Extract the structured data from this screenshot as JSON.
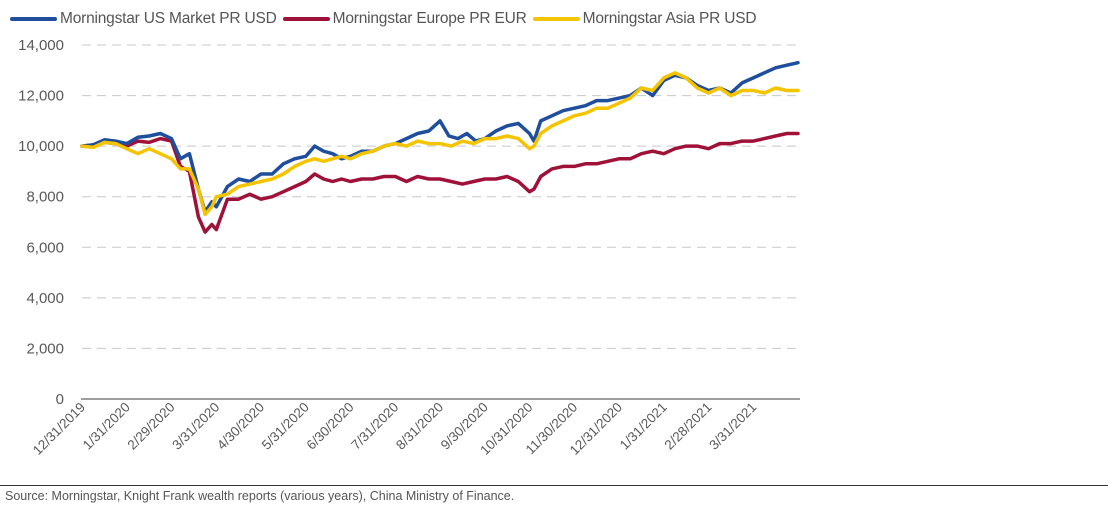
{
  "chart_data": {
    "type": "line",
    "title": "",
    "xlabel": "",
    "ylabel": "",
    "ylim": [
      0,
      14000
    ],
    "yticks": [
      0,
      2000,
      4000,
      6000,
      8000,
      10000,
      12000,
      14000
    ],
    "ytick_labels": [
      "0",
      "2,000",
      "4,000",
      "6,000",
      "8,000",
      "10,000",
      "12,000",
      "14,000"
    ],
    "xtick_labels": [
      "12/31/2019",
      "1/31/2020",
      "2/29/2020",
      "3/31/2020",
      "4/30/2020",
      "5/31/2020",
      "6/30/2020",
      "7/31/2020",
      "8/31/2020",
      "9/30/2020",
      "10/31/2020",
      "11/30/2020",
      "12/31/2020",
      "1/31/2021",
      "2/28/2021",
      "3/31/2021"
    ],
    "x_unit": "months since 12/31/2019",
    "x_range": [
      0,
      16
    ],
    "grid": "horizontal dashed",
    "legend": "top-left",
    "series": [
      {
        "name": "Morningstar US Market PR USD",
        "color": "#1f4e9c",
        "x": [
          0,
          0.25,
          0.5,
          0.75,
          1,
          1.25,
          1.5,
          1.75,
          2,
          2.2,
          2.4,
          2.6,
          2.75,
          2.9,
          3,
          3.25,
          3.5,
          3.75,
          4,
          4.25,
          4.5,
          4.75,
          5,
          5.2,
          5.4,
          5.6,
          5.8,
          6,
          6.25,
          6.5,
          6.75,
          7,
          7.25,
          7.5,
          7.75,
          8,
          8.2,
          8.4,
          8.6,
          8.8,
          9,
          9.25,
          9.5,
          9.75,
          10,
          10.1,
          10.25,
          10.5,
          10.75,
          11,
          11.25,
          11.5,
          11.75,
          12,
          12.25,
          12.5,
          12.75,
          13,
          13.25,
          13.5,
          13.75,
          14,
          14.25,
          14.5,
          14.75,
          15,
          15.25,
          15.5,
          15.75,
          16
        ],
        "values": [
          10000,
          10050,
          10250,
          10200,
          10100,
          10350,
          10400,
          10500,
          10300,
          9500,
          9700,
          8300,
          7400,
          7800,
          7600,
          8400,
          8700,
          8600,
          8900,
          8900,
          9300,
          9500,
          9600,
          10000,
          9800,
          9700,
          9500,
          9600,
          9800,
          9800,
          10000,
          10100,
          10300,
          10500,
          10600,
          11000,
          10400,
          10300,
          10500,
          10200,
          10300,
          10600,
          10800,
          10900,
          10500,
          10200,
          11000,
          11200,
          11400,
          11500,
          11600,
          11800,
          11800,
          11900,
          12000,
          12300,
          12000,
          12600,
          12800,
          12700,
          12400,
          12200,
          12300,
          12100,
          12500,
          12700,
          12900,
          13100,
          13200,
          13300
        ]
      },
      {
        "name": "Morningstar Europe PR EUR",
        "color": "#a0113a",
        "x": [
          0,
          0.25,
          0.5,
          0.75,
          1,
          1.25,
          1.5,
          1.75,
          2,
          2.2,
          2.4,
          2.6,
          2.75,
          2.9,
          3,
          3.25,
          3.5,
          3.75,
          4,
          4.25,
          4.5,
          4.75,
          5,
          5.2,
          5.4,
          5.6,
          5.8,
          6,
          6.25,
          6.5,
          6.75,
          7,
          7.25,
          7.5,
          7.75,
          8,
          8.25,
          8.5,
          8.75,
          9,
          9.25,
          9.5,
          9.75,
          10,
          10.1,
          10.25,
          10.5,
          10.75,
          11,
          11.25,
          11.5,
          11.75,
          12,
          12.25,
          12.5,
          12.75,
          13,
          13.25,
          13.5,
          13.75,
          14,
          14.25,
          14.5,
          14.75,
          15,
          15.25,
          15.5,
          15.75,
          16
        ],
        "values": [
          10000,
          10050,
          10150,
          10100,
          10000,
          10200,
          10150,
          10300,
          10200,
          9200,
          9000,
          7200,
          6600,
          6900,
          6700,
          7900,
          7900,
          8100,
          7900,
          8000,
          8200,
          8400,
          8600,
          8900,
          8700,
          8600,
          8700,
          8600,
          8700,
          8700,
          8800,
          8800,
          8600,
          8800,
          8700,
          8700,
          8600,
          8500,
          8600,
          8700,
          8700,
          8800,
          8600,
          8200,
          8300,
          8800,
          9100,
          9200,
          9200,
          9300,
          9300,
          9400,
          9500,
          9500,
          9700,
          9800,
          9700,
          9900,
          10000,
          10000,
          9900,
          10100,
          10100,
          10200,
          10200,
          10300,
          10400,
          10500,
          10500
        ]
      },
      {
        "name": "Morningstar Asia PR USD",
        "color": "#f5c400",
        "x": [
          0,
          0.25,
          0.5,
          0.75,
          1,
          1.25,
          1.5,
          1.75,
          2,
          2.2,
          2.4,
          2.6,
          2.75,
          2.9,
          3,
          3.25,
          3.5,
          3.75,
          4,
          4.25,
          4.5,
          4.75,
          5,
          5.2,
          5.4,
          5.6,
          5.8,
          6,
          6.25,
          6.5,
          6.75,
          7,
          7.25,
          7.5,
          7.75,
          8,
          8.25,
          8.5,
          8.75,
          9,
          9.25,
          9.5,
          9.75,
          10,
          10.1,
          10.25,
          10.5,
          10.75,
          11,
          11.25,
          11.5,
          11.75,
          12,
          12.25,
          12.5,
          12.75,
          13,
          13.25,
          13.5,
          13.75,
          14,
          14.25,
          14.5,
          14.75,
          15,
          15.25,
          15.5,
          15.75,
          16
        ],
        "values": [
          10000,
          9950,
          10150,
          10100,
          9900,
          9700,
          9900,
          9700,
          9500,
          9100,
          9100,
          8300,
          7300,
          7600,
          8000,
          8100,
          8400,
          8500,
          8600,
          8700,
          8900,
          9200,
          9400,
          9500,
          9400,
          9500,
          9600,
          9500,
          9700,
          9800,
          10000,
          10100,
          10000,
          10200,
          10100,
          10100,
          10000,
          10200,
          10100,
          10300,
          10300,
          10400,
          10300,
          9900,
          10000,
          10500,
          10800,
          11000,
          11200,
          11300,
          11500,
          11500,
          11700,
          11900,
          12300,
          12200,
          12700,
          12900,
          12700,
          12300,
          12100,
          12300,
          12000,
          12200,
          12200,
          12100,
          12300,
          12200,
          12200
        ]
      }
    ]
  },
  "legend": {
    "items": [
      {
        "label": "Morningstar US Market PR USD",
        "color": "#1f4e9c"
      },
      {
        "label": "Morningstar Europe PR EUR",
        "color": "#a0113a"
      },
      {
        "label": "Morningstar Asia PR USD",
        "color": "#f5c400"
      }
    ]
  },
  "footer": {
    "source": "Source: Morningstar, Knight Frank wealth reports (various years), China Ministry of Finance."
  }
}
